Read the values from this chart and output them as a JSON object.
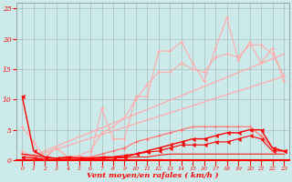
{
  "x": [
    0,
    1,
    2,
    3,
    4,
    5,
    6,
    7,
    8,
    9,
    10,
    11,
    12,
    13,
    14,
    15,
    16,
    17,
    18,
    19,
    20,
    21,
    22,
    23
  ],
  "line_jagged1": [
    1.5,
    0.3,
    0.2,
    2.0,
    0.5,
    0.3,
    0.5,
    8.5,
    3.5,
    3.5,
    10.5,
    10.5,
    18.0,
    18.0,
    19.5,
    16.0,
    13.0,
    18.5,
    23.5,
    16.5,
    19.5,
    16.0,
    18.5,
    13.0
  ],
  "line_jagged2": [
    5.5,
    3.0,
    0.5,
    2.0,
    0.5,
    0.8,
    1.5,
    4.5,
    5.5,
    7.0,
    10.0,
    12.5,
    14.5,
    14.5,
    16.0,
    15.0,
    14.5,
    17.0,
    17.5,
    17.0,
    19.0,
    19.0,
    17.5,
    14.0
  ],
  "line_trend1": [
    0.0,
    0.6,
    1.2,
    1.8,
    2.4,
    3.0,
    3.6,
    4.2,
    4.8,
    5.4,
    6.0,
    6.6,
    7.2,
    7.8,
    8.4,
    9.0,
    9.6,
    10.2,
    10.8,
    11.4,
    12.0,
    12.6,
    13.2,
    13.8
  ],
  "line_trend2": [
    0.0,
    0.76,
    1.52,
    2.28,
    3.04,
    3.8,
    4.56,
    5.32,
    6.08,
    6.84,
    7.6,
    8.36,
    9.12,
    9.88,
    10.64,
    11.4,
    12.16,
    12.92,
    13.68,
    14.44,
    15.2,
    15.96,
    16.72,
    17.48
  ],
  "line_med1": [
    1.0,
    0.5,
    0.3,
    0.3,
    0.3,
    0.5,
    0.5,
    1.0,
    1.5,
    2.0,
    3.0,
    3.5,
    4.0,
    4.5,
    5.0,
    5.5,
    5.5,
    5.5,
    5.5,
    5.5,
    5.5,
    4.0,
    2.0,
    1.5
  ],
  "line_dark1": [
    10.5,
    1.5,
    0.5,
    0.3,
    0.5,
    0.3,
    0.3,
    0.5,
    0.5,
    0.5,
    1.0,
    1.5,
    2.0,
    2.5,
    3.0,
    3.5,
    3.5,
    4.0,
    4.5,
    4.5,
    5.0,
    5.0,
    2.0,
    1.5
  ],
  "line_dark2": [
    0.5,
    0.3,
    0.1,
    0.1,
    0.1,
    0.1,
    0.2,
    0.3,
    0.5,
    0.8,
    1.0,
    1.3,
    1.5,
    2.0,
    2.5,
    2.5,
    2.5,
    3.0,
    3.0,
    3.5,
    4.0,
    3.5,
    1.5,
    1.5
  ],
  "line_flat": [
    1.0,
    0.8,
    0.5,
    0.3,
    0.3,
    0.3,
    0.3,
    0.3,
    0.3,
    0.4,
    0.5,
    0.5,
    0.8,
    1.0,
    1.0,
    1.0,
    1.0,
    1.0,
    1.0,
    1.0,
    1.0,
    1.0,
    1.0,
    1.0
  ],
  "background_color": "#cceaea",
  "grid_color": "#aabbbb",
  "color_light": "#ffaaaa",
  "color_mid": "#ff7777",
  "color_dark": "#ff0000",
  "xlabel": "Vent moyen/en rafales ( km/h )",
  "ylim": [
    0,
    26
  ],
  "xlim": [
    -0.5,
    23.5
  ],
  "yticks": [
    0,
    5,
    10,
    15,
    20,
    25
  ],
  "xticks": [
    0,
    1,
    2,
    3,
    4,
    5,
    6,
    7,
    8,
    9,
    10,
    11,
    12,
    13,
    14,
    15,
    16,
    17,
    18,
    19,
    20,
    21,
    22,
    23
  ]
}
